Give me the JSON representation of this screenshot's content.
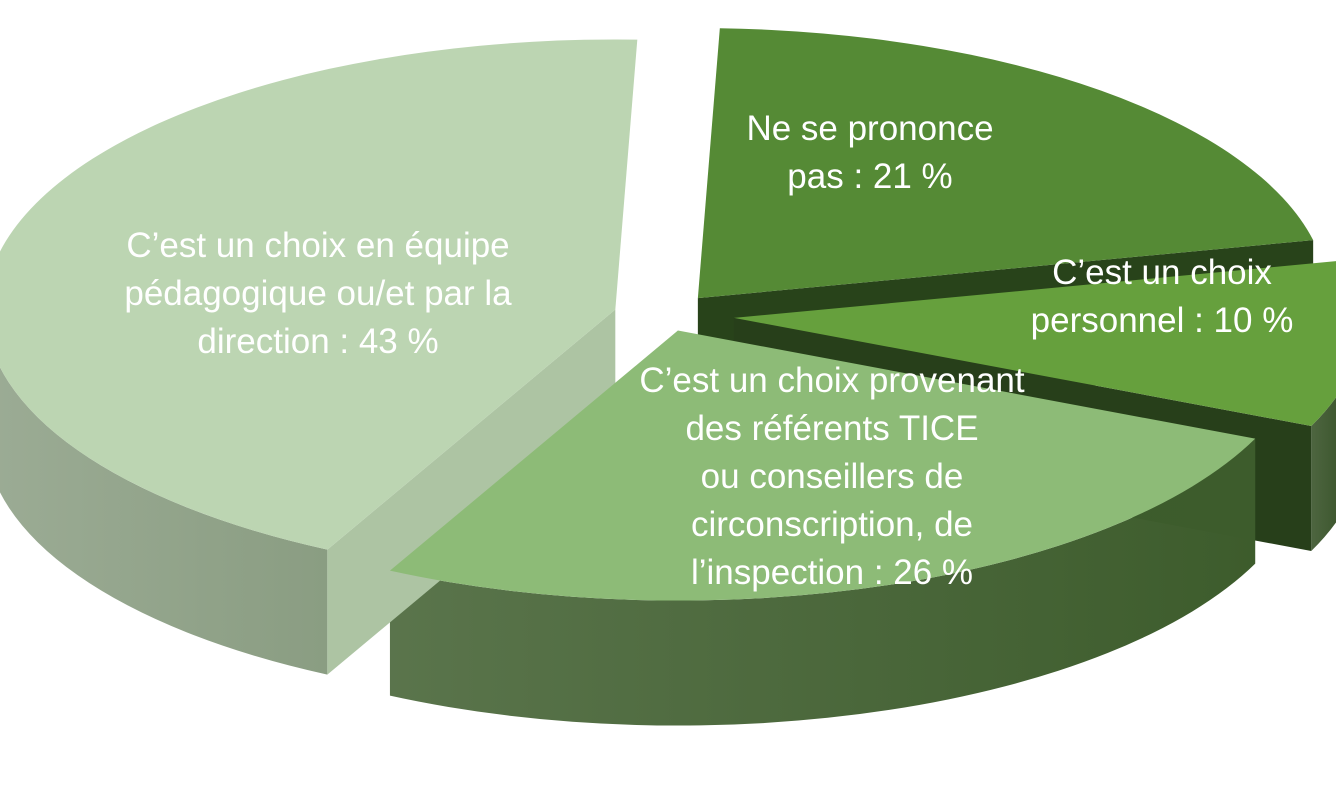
{
  "chart_data": {
    "type": "pie",
    "style": "3d-exploded",
    "title": "",
    "slices": [
      {
        "key": "ne-se-prononce",
        "value": 21,
        "label_lines": [
          "Ne se prononce",
          "pas : 21 %"
        ],
        "top_color": "#558a35",
        "side_color": "#2f4f1f"
      },
      {
        "key": "choix-personnel",
        "value": 10,
        "label_lines": [
          "C’est un choix",
          "personnel : 10 %"
        ],
        "top_color": "#66a03d",
        "side_color": "#2e4a1e"
      },
      {
        "key": "referents-tice",
        "value": 26,
        "label_lines": [
          "C’est un choix provenant",
          "des référents TICE",
          "ou conseillers de",
          "circonscription, de",
          "l’inspection : 26 %"
        ],
        "top_color": "#8dbb77",
        "side_color": "#3d5c2c"
      },
      {
        "key": "equipe-pedagogique",
        "value": 43,
        "label_lines": [
          "C’est un choix en équipe",
          "pédagogique ou/et par la",
          "direction : 43 %"
        ],
        "top_color": "#bcd5b2",
        "side_color": "#8a9d82"
      }
    ]
  }
}
